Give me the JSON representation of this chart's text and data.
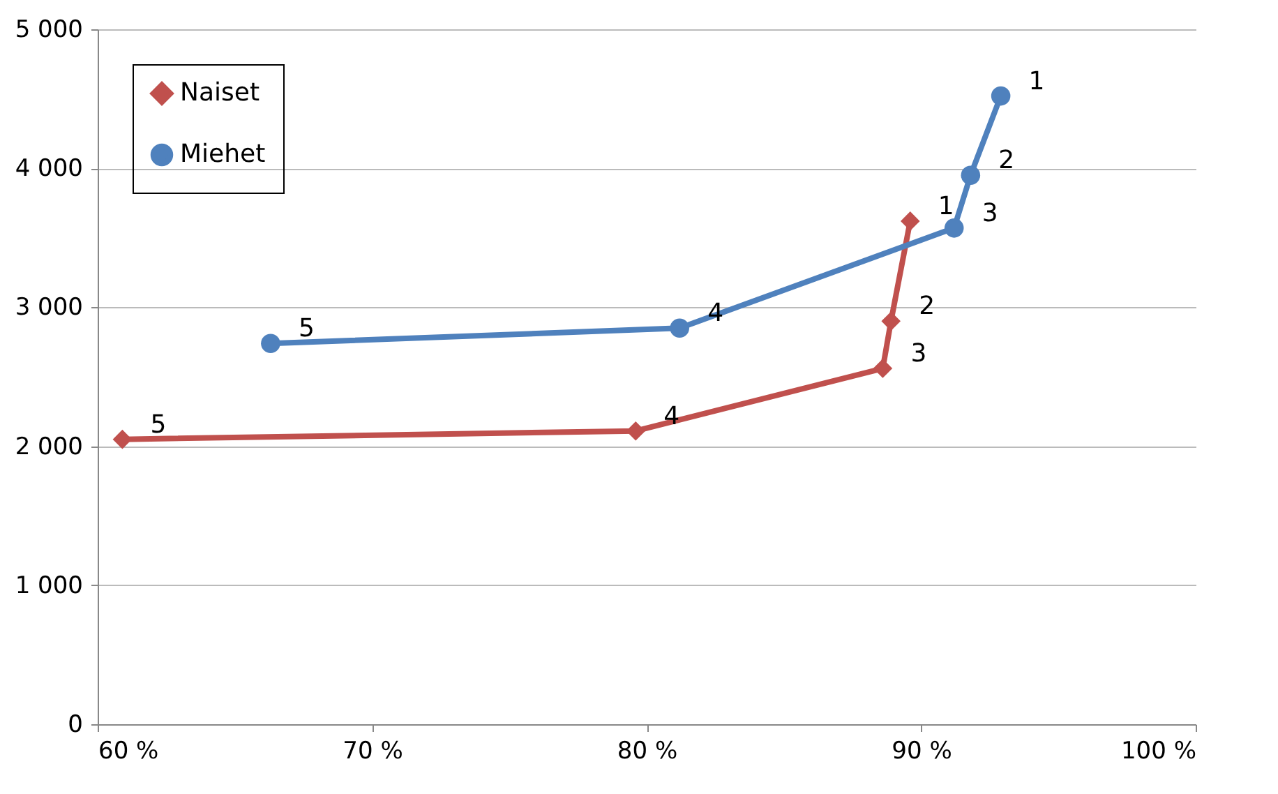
{
  "chart_data": {
    "type": "line",
    "series": [
      {
        "name": "Naiset",
        "color": "#c0504d",
        "marker": "diamond",
        "x": [
          89.6,
          88.9,
          88.6,
          79.6,
          60.9
        ],
        "values": [
          3620,
          2900,
          2560,
          2110,
          2050
        ]
      },
      {
        "name": "Miehet",
        "color": "#4f81bd",
        "marker": "circle",
        "x": [
          92.9,
          91.8,
          91.2,
          81.2,
          66.3
        ],
        "values": [
          4520,
          3950,
          3570,
          2850,
          2740
        ]
      }
    ],
    "xlim": [
      60,
      100
    ],
    "xticks": [
      {
        "value": 60,
        "label": "60 %"
      },
      {
        "value": 70,
        "label": "70 %"
      },
      {
        "value": 80,
        "label": "80 %"
      },
      {
        "value": 90,
        "label": "90 %"
      },
      {
        "value": 100,
        "label": "100 %"
      }
    ],
    "ylim": [
      0,
      5000
    ],
    "yticks": [
      {
        "value": 0,
        "label": "0"
      },
      {
        "value": 1000,
        "label": "1 000"
      },
      {
        "value": 2000,
        "label": "2 000"
      },
      {
        "value": 3000,
        "label": "3 000"
      },
      {
        "value": 4000,
        "label": "4 000"
      },
      {
        "value": 5000,
        "label": "5 000"
      }
    ],
    "grid": "y",
    "legend": "top left",
    "line_style": "solid",
    "annotations": [
      {
        "text": "1",
        "x": 89.6,
        "y": 3620
      },
      {
        "text": "2",
        "x": 88.9,
        "y": 2900
      },
      {
        "text": "3",
        "x": 88.6,
        "y": 2560
      },
      {
        "text": "4",
        "x": 79.6,
        "y": 2110
      },
      {
        "text": "5",
        "x": 60.9,
        "y": 2050
      },
      {
        "text": "1",
        "x": 92.9,
        "y": 4520
      },
      {
        "text": "2",
        "x": 91.8,
        "y": 3950
      },
      {
        "text": "3",
        "x": 91.2,
        "y": 3570
      },
      {
        "text": "4",
        "x": 81.2,
        "y": 2850
      },
      {
        "text": "5",
        "x": 66.3,
        "y": 2740
      }
    ]
  }
}
